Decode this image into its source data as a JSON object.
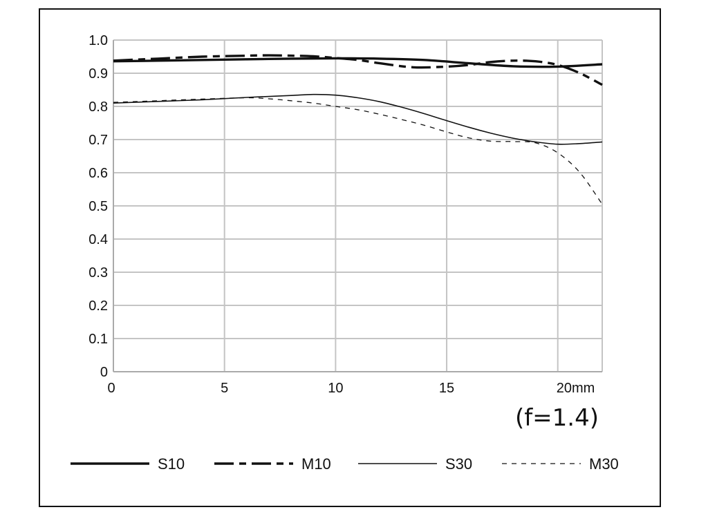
{
  "chart_data": {
    "type": "line",
    "title": "",
    "xlabel": "",
    "ylabel": "",
    "xlim": [
      0,
      22
    ],
    "ylim": [
      0,
      1.0
    ],
    "grid": true,
    "legend_position": "bottom",
    "annotation": "(f=1.4)",
    "x_ticks": [
      {
        "value": 0,
        "label": "0"
      },
      {
        "value": 5,
        "label": "5"
      },
      {
        "value": 10,
        "label": "10"
      },
      {
        "value": 15,
        "label": "15"
      },
      {
        "value": 20,
        "label": "20mm"
      }
    ],
    "y_ticks": [
      {
        "value": 0,
        "label": "0"
      },
      {
        "value": 0.1,
        "label": "0.1"
      },
      {
        "value": 0.2,
        "label": "0.2"
      },
      {
        "value": 0.3,
        "label": "0.3"
      },
      {
        "value": 0.4,
        "label": "0.4"
      },
      {
        "value": 0.5,
        "label": "0.5"
      },
      {
        "value": 0.6,
        "label": "0.6"
      },
      {
        "value": 0.7,
        "label": "0.7"
      },
      {
        "value": 0.8,
        "label": "0.8"
      },
      {
        "value": 0.9,
        "label": "0.9"
      },
      {
        "value": 1.0,
        "label": "1.0"
      }
    ],
    "series": [
      {
        "name": "S10",
        "style": "thick-solid",
        "color": "#111111",
        "x": [
          0,
          2,
          4,
          6,
          8,
          10,
          12,
          14,
          16,
          18,
          20,
          22
        ],
        "y": [
          0.936,
          0.938,
          0.94,
          0.942,
          0.944,
          0.945,
          0.944,
          0.94,
          0.93,
          0.921,
          0.92,
          0.927
        ]
      },
      {
        "name": "M10",
        "style": "thick-dash",
        "color": "#111111",
        "x": [
          0,
          2,
          4,
          6,
          7,
          8,
          9,
          10,
          11,
          12,
          13.5,
          15,
          16,
          17,
          18,
          19,
          20,
          21,
          22
        ],
        "y": [
          0.938,
          0.944,
          0.95,
          0.953,
          0.954,
          0.953,
          0.951,
          0.946,
          0.94,
          0.93,
          0.918,
          0.92,
          0.925,
          0.934,
          0.938,
          0.936,
          0.925,
          0.9,
          0.865
        ]
      },
      {
        "name": "S30",
        "style": "thin-solid",
        "color": "#111111",
        "x": [
          0,
          2,
          4,
          6,
          8,
          9,
          10,
          11,
          12,
          13,
          14,
          15,
          16,
          17,
          18,
          19,
          20,
          21,
          22
        ],
        "y": [
          0.81,
          0.815,
          0.82,
          0.827,
          0.833,
          0.836,
          0.834,
          0.826,
          0.814,
          0.797,
          0.778,
          0.757,
          0.737,
          0.719,
          0.704,
          0.693,
          0.686,
          0.688,
          0.693
        ]
      },
      {
        "name": "M30",
        "style": "thin-dash",
        "color": "#111111",
        "x": [
          0,
          2,
          4,
          6,
          7,
          8,
          9,
          10,
          11,
          12,
          13,
          14,
          15,
          16,
          17,
          18,
          19,
          20,
          21,
          22
        ],
        "y": [
          0.812,
          0.817,
          0.822,
          0.826,
          0.823,
          0.817,
          0.81,
          0.8,
          0.79,
          0.776,
          0.76,
          0.743,
          0.723,
          0.705,
          0.695,
          0.694,
          0.69,
          0.66,
          0.6,
          0.505
        ]
      }
    ]
  }
}
